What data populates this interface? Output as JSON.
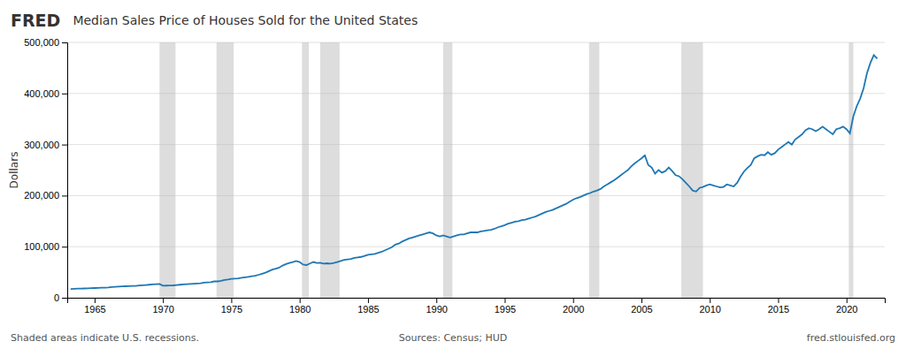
{
  "chart_data": {
    "type": "line",
    "title": "Median Sales Price of Houses Sold for the United States",
    "ylabel": "Dollars",
    "annotations": [
      "FRED",
      "Shaded areas indicate U.S. recessions.",
      "Sources: Census; HUD",
      "fred.stlouisfed.org"
    ],
    "grid": true,
    "xlim": [
      1963.0,
      2022.8
    ],
    "xticks": [
      1965,
      1970,
      1975,
      1980,
      1985,
      1990,
      1995,
      2000,
      2005,
      2010,
      2015,
      2020
    ],
    "ylim": [
      0,
      500000
    ],
    "yticks": [
      0,
      {
        "value": 100000,
        "label": "100,000"
      },
      {
        "value": 200000,
        "label": "200,000"
      },
      {
        "value": 300000,
        "label": "300,000"
      },
      {
        "value": 400000,
        "label": "400,000"
      },
      {
        "value": 500000,
        "label": "500,000"
      }
    ],
    "recessions": [
      [
        1969.75,
        1970.92
      ],
      [
        1973.92,
        1975.17
      ],
      [
        1980.17,
        1980.67
      ],
      [
        1981.5,
        1982.92
      ],
      [
        1990.5,
        1991.17
      ],
      [
        2001.17,
        2001.92
      ],
      [
        2007.92,
        2009.5
      ],
      [
        2020.17,
        2020.5
      ]
    ],
    "x": [
      1963.25,
      1963.5,
      1963.75,
      1964.0,
      1964.25,
      1964.5,
      1964.75,
      1965.0,
      1965.25,
      1965.5,
      1965.75,
      1966.0,
      1966.25,
      1966.5,
      1966.75,
      1967.0,
      1967.25,
      1967.5,
      1967.75,
      1968.0,
      1968.25,
      1968.5,
      1968.75,
      1969.0,
      1969.25,
      1969.5,
      1969.75,
      1970.0,
      1970.25,
      1970.5,
      1970.75,
      1971.0,
      1971.25,
      1971.5,
      1971.75,
      1972.0,
      1972.25,
      1972.5,
      1972.75,
      1973.0,
      1973.25,
      1973.5,
      1973.75,
      1974.0,
      1974.25,
      1974.5,
      1974.75,
      1975.0,
      1975.25,
      1975.5,
      1975.75,
      1976.0,
      1976.25,
      1976.5,
      1976.75,
      1977.0,
      1977.25,
      1977.5,
      1977.75,
      1978.0,
      1978.25,
      1978.5,
      1978.75,
      1979.0,
      1979.25,
      1979.5,
      1979.75,
      1980.0,
      1980.25,
      1980.5,
      1980.75,
      1981.0,
      1981.25,
      1981.5,
      1981.75,
      1982.0,
      1982.25,
      1982.5,
      1982.75,
      1983.0,
      1983.25,
      1983.5,
      1983.75,
      1984.0,
      1984.25,
      1984.5,
      1984.75,
      1985.0,
      1985.25,
      1985.5,
      1985.75,
      1986.0,
      1986.25,
      1986.5,
      1986.75,
      1987.0,
      1987.25,
      1987.5,
      1987.75,
      1988.0,
      1988.25,
      1988.5,
      1988.75,
      1989.0,
      1989.25,
      1989.5,
      1989.75,
      1990.0,
      1990.25,
      1990.5,
      1990.75,
      1991.0,
      1991.25,
      1991.5,
      1991.75,
      1992.0,
      1992.25,
      1992.5,
      1992.75,
      1993.0,
      1993.25,
      1993.5,
      1993.75,
      1994.0,
      1994.25,
      1994.5,
      1994.75,
      1995.0,
      1995.25,
      1995.5,
      1995.75,
      1996.0,
      1996.25,
      1996.5,
      1996.75,
      1997.0,
      1997.25,
      1997.5,
      1997.75,
      1998.0,
      1998.25,
      1998.5,
      1998.75,
      1999.0,
      1999.25,
      1999.5,
      1999.75,
      2000.0,
      2000.25,
      2000.5,
      2000.75,
      2001.0,
      2001.25,
      2001.5,
      2001.75,
      2002.0,
      2002.25,
      2002.5,
      2002.75,
      2003.0,
      2003.25,
      2003.5,
      2003.75,
      2004.0,
      2004.25,
      2004.5,
      2004.75,
      2005.0,
      2005.25,
      2005.5,
      2005.75,
      2006.0,
      2006.25,
      2006.5,
      2006.75,
      2007.0,
      2007.25,
      2007.5,
      2007.75,
      2008.0,
      2008.25,
      2008.5,
      2008.75,
      2009.0,
      2009.25,
      2009.5,
      2009.75,
      2010.0,
      2010.25,
      2010.5,
      2010.75,
      2011.0,
      2011.25,
      2011.5,
      2011.75,
      2012.0,
      2012.25,
      2012.5,
      2012.75,
      2013.0,
      2013.25,
      2013.5,
      2013.75,
      2014.0,
      2014.25,
      2014.5,
      2014.75,
      2015.0,
      2015.25,
      2015.5,
      2015.75,
      2016.0,
      2016.25,
      2016.5,
      2016.75,
      2017.0,
      2017.25,
      2017.5,
      2017.75,
      2018.0,
      2018.25,
      2018.5,
      2018.75,
      2019.0,
      2019.25,
      2019.5,
      2019.75,
      2020.0,
      2020.25,
      2020.5,
      2020.75,
      2021.0,
      2021.25,
      2021.5,
      2021.75,
      2022.0,
      2022.25
    ],
    "values": [
      17200,
      17500,
      17800,
      18000,
      18200,
      18500,
      18700,
      19000,
      19300,
      19600,
      19800,
      20000,
      21000,
      21500,
      22000,
      22200,
      22500,
      22700,
      23000,
      23300,
      24000,
      24500,
      25000,
      25500,
      26000,
      26500,
      27000,
      23500,
      23800,
      24000,
      24200,
      25000,
      25500,
      26000,
      26500,
      27000,
      27500,
      28000,
      28500,
      29500,
      30000,
      30500,
      32000,
      32000,
      33000,
      35000,
      35500,
      37000,
      37500,
      38000,
      39000,
      40000,
      41000,
      42000,
      43000,
      45000,
      47000,
      49000,
      52000,
      55000,
      57000,
      59000,
      63000,
      66000,
      68000,
      70000,
      72000,
      70000,
      65000,
      64000,
      67000,
      70000,
      68000,
      68500,
      67000,
      67500,
      67000,
      68000,
      70000,
      72000,
      74000,
      75000,
      76000,
      78000,
      79000,
      80000,
      82000,
      84000,
      85000,
      86000,
      88000,
      90000,
      93000,
      96000,
      99000,
      104000,
      106000,
      110000,
      113000,
      116000,
      118000,
      120000,
      122000,
      124000,
      126000,
      128000,
      126000,
      122000,
      120000,
      122000,
      120000,
      118000,
      120000,
      122000,
      124000,
      124000,
      126000,
      128000,
      128000,
      128000,
      130000,
      131000,
      132000,
      133000,
      135000,
      138000,
      140000,
      142000,
      145000,
      147000,
      149000,
      150000,
      152000,
      153000,
      155000,
      157000,
      159000,
      162000,
      165000,
      168000,
      170000,
      172000,
      175000,
      178000,
      181000,
      184000,
      188000,
      192000,
      195000,
      197000,
      200000,
      203000,
      205000,
      208000,
      210000,
      213000,
      218000,
      222000,
      226000,
      230000,
      235000,
      240000,
      245000,
      250000,
      257000,
      263000,
      268000,
      273000,
      279000,
      260000,
      255000,
      243000,
      250000,
      245000,
      248000,
      255000,
      248000,
      240000,
      238000,
      232000,
      225000,
      218000,
      210000,
      208000,
      215000,
      217000,
      220000,
      222000,
      220000,
      218000,
      216000,
      217000,
      222000,
      220000,
      218000,
      225000,
      237000,
      247000,
      254000,
      260000,
      273000,
      277000,
      280000,
      279000,
      285000,
      280000,
      283000,
      290000,
      295000,
      300000,
      305000,
      300000,
      310000,
      315000,
      320000,
      328000,
      332000,
      330000,
      326000,
      330000,
      335000,
      330000,
      325000,
      320000,
      330000,
      332000,
      335000,
      330000,
      322000,
      355000,
      375000,
      390000,
      410000,
      440000,
      460000,
      475000,
      468000
    ]
  }
}
